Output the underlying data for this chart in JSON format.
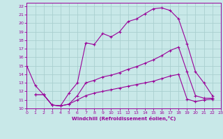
{
  "background_color": "#c8e8e8",
  "grid_color": "#aacfcf",
  "line_color": "#990099",
  "xlabel": "Windchill (Refroidissement éolien,°C)",
  "xlim": [
    0,
    23
  ],
  "ylim": [
    10,
    22.4
  ],
  "xticks": [
    0,
    1,
    2,
    3,
    4,
    5,
    6,
    7,
    8,
    9,
    10,
    11,
    12,
    13,
    14,
    15,
    16,
    17,
    18,
    19,
    20,
    21,
    22,
    23
  ],
  "yticks": [
    10,
    11,
    12,
    13,
    14,
    15,
    16,
    17,
    18,
    19,
    20,
    21,
    22
  ],
  "line1_x": [
    0,
    1,
    2,
    3,
    4,
    5,
    6,
    7,
    8,
    9,
    10,
    11,
    12,
    13,
    14,
    15,
    16,
    17,
    18,
    19,
    20,
    21,
    22
  ],
  "line1_y": [
    15.0,
    12.7,
    11.6,
    10.4,
    10.3,
    11.8,
    13.0,
    17.7,
    17.5,
    18.8,
    18.4,
    19.0,
    20.2,
    20.5,
    21.1,
    21.7,
    21.8,
    21.5,
    20.5,
    17.6,
    14.3,
    13.0,
    11.5
  ],
  "line2_x": [
    1,
    2,
    3,
    4,
    5,
    6,
    7,
    8,
    9,
    10,
    11,
    12,
    13,
    14,
    15,
    16,
    17,
    18,
    19,
    20,
    21,
    22
  ],
  "line2_y": [
    11.6,
    11.6,
    10.4,
    10.3,
    10.5,
    11.5,
    13.0,
    13.3,
    13.7,
    13.9,
    14.2,
    14.6,
    14.9,
    15.3,
    15.7,
    16.2,
    16.8,
    17.2,
    14.3,
    11.5,
    11.2,
    11.2
  ],
  "line3_x": [
    1,
    2,
    3,
    4,
    5,
    6,
    7,
    8,
    9,
    10,
    11,
    12,
    13,
    14,
    15,
    16,
    17,
    18,
    19,
    20,
    21,
    22
  ],
  "line3_y": [
    11.6,
    11.6,
    10.4,
    10.3,
    10.5,
    11.0,
    11.5,
    11.8,
    12.0,
    12.2,
    12.4,
    12.6,
    12.8,
    13.0,
    13.2,
    13.5,
    13.8,
    14.0,
    11.1,
    10.8,
    11.0,
    11.1
  ]
}
